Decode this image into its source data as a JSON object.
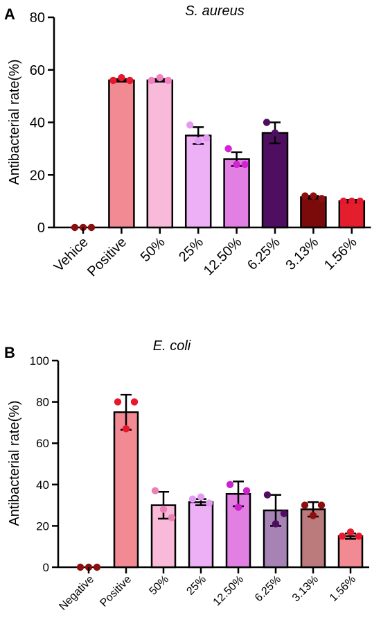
{
  "chart_data": [
    {
      "type": "bar",
      "panel_label": "A",
      "title": "S. aureus",
      "ylabel": "Antibacterial rate(%)",
      "ylim": [
        0,
        80
      ],
      "yticks": [
        0,
        20,
        40,
        60,
        80
      ],
      "categories": [
        "Vehice",
        "Positive",
        "50%",
        "25%",
        "12.50%",
        "6.25%",
        "3.13%",
        "1.56%"
      ],
      "values": [
        0,
        56,
        56,
        35,
        26,
        36,
        11.5,
        10
      ],
      "errors": [
        0,
        0.5,
        0.5,
        3.2,
        2.6,
        4.0,
        0.5,
        0.5
      ],
      "points": [
        [
          0,
          0,
          0
        ],
        [
          56,
          57,
          56
        ],
        [
          56,
          57,
          56
        ],
        [
          39,
          33,
          34
        ],
        [
          30,
          24,
          24
        ],
        [
          40,
          36,
          33
        ],
        [
          12,
          12,
          11
        ],
        [
          10,
          10,
          10
        ]
      ],
      "bar_colors": [
        "#7b0a0a",
        "#f28a93",
        "#f9b9d9",
        "#edb0f6",
        "#e27fe3",
        "#4f0f60",
        "#7b0a0a",
        "#e51e2e"
      ],
      "point_colors": [
        "#8b0f0f",
        "#e8182c",
        "#f27fc0",
        "#e39af2",
        "#d621d6",
        "#4e0d5e",
        "#8b0f0f",
        "#e8182c"
      ],
      "grid": false
    },
    {
      "type": "bar",
      "panel_label": "B",
      "title": "E. coli",
      "ylabel": "Antibacterial rate(%)",
      "ylim": [
        0,
        100
      ],
      "yticks": [
        0,
        20,
        40,
        60,
        80,
        100
      ],
      "categories": [
        "Negative",
        "Positive",
        "50%",
        "25%",
        "12.50%",
        "6.25%",
        "3.13%",
        "1.56%"
      ],
      "values": [
        0,
        75,
        30,
        31.5,
        35.5,
        27.5,
        28,
        15
      ],
      "errors": [
        0,
        8.5,
        6.5,
        1.5,
        6,
        7.5,
        3.5,
        1.3
      ],
      "points": [
        [
          0,
          0,
          0
        ],
        [
          80,
          67,
          80
        ],
        [
          37,
          28,
          24
        ],
        [
          33,
          34,
          31
        ],
        [
          40,
          29,
          37
        ],
        [
          35,
          21,
          26
        ],
        [
          30,
          25,
          30
        ],
        [
          15,
          17,
          15
        ]
      ],
      "bar_colors": [
        "#7b0a0a",
        "#f28a93",
        "#f9b9d9",
        "#edb0f6",
        "#e27fe3",
        "#a783b5",
        "#bb7a7c",
        "#f28a93"
      ],
      "point_colors": [
        "#8b0f0f",
        "#e8182c",
        "#ec7fb4",
        "#e39af2",
        "#cc21cc",
        "#4e0d5e",
        "#8b0f0f",
        "#e8182c"
      ],
      "grid": false
    }
  ]
}
